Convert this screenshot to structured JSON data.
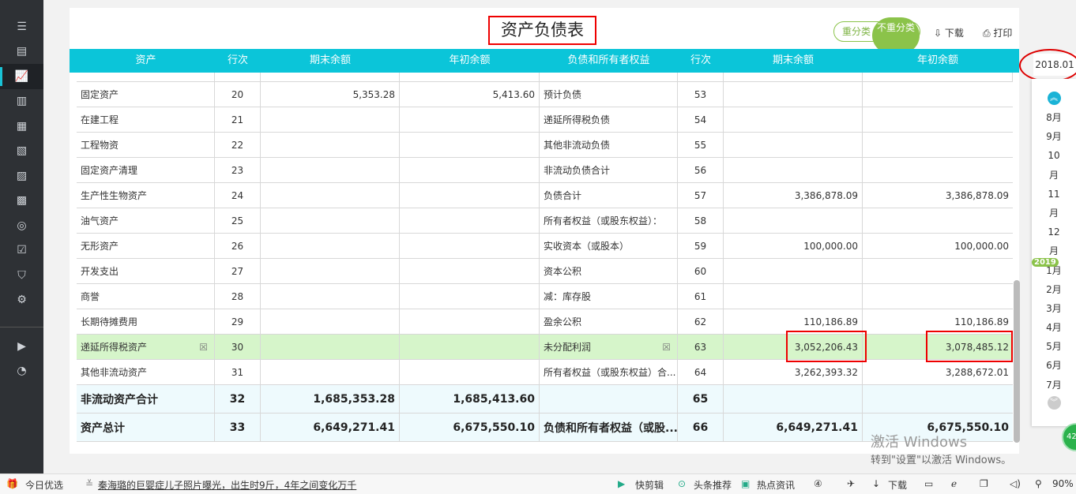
{
  "sidebar": {
    "items": [
      {
        "icon": "list-icon"
      },
      {
        "icon": "voucher-icon"
      },
      {
        "icon": "chart-icon",
        "active": true
      },
      {
        "icon": "building-icon"
      },
      {
        "icon": "calendar-icon"
      },
      {
        "icon": "ledger-icon"
      },
      {
        "icon": "store-icon"
      },
      {
        "icon": "report-icon"
      },
      {
        "icon": "coins-icon"
      },
      {
        "icon": "checklist-icon"
      },
      {
        "icon": "shield-icon"
      },
      {
        "icon": "gear-icon"
      }
    ],
    "bottom_items": [
      {
        "icon": "video-icon"
      },
      {
        "icon": "speed-icon"
      }
    ]
  },
  "header": {
    "title": "资产负债表",
    "toggle_off": "重分类",
    "toggle_on": "不重分类",
    "download": "下载",
    "print": "打印"
  },
  "table": {
    "columns": [
      "资产",
      "行次",
      "期末余额",
      "年初余额",
      "负债和所有者权益",
      "行次",
      "期末余额",
      "年初余额"
    ],
    "rows": [
      [
        "固定资产",
        "20",
        "5,353.28",
        "5,413.60",
        "预计负债",
        "53",
        "",
        ""
      ],
      [
        "在建工程",
        "21",
        "",
        "",
        "递延所得税负债",
        "54",
        "",
        ""
      ],
      [
        "工程物资",
        "22",
        "",
        "",
        "其他非流动负债",
        "55",
        "",
        ""
      ],
      [
        "固定资产清理",
        "23",
        "",
        "",
        "非流动负债合计",
        "56",
        "",
        ""
      ],
      [
        "生产性生物资产",
        "24",
        "",
        "",
        "负债合计",
        "57",
        "3,386,878.09",
        "3,386,878.09"
      ],
      [
        "油气资产",
        "25",
        "",
        "",
        "所有者权益（或股东权益）：",
        "58",
        "",
        ""
      ],
      [
        "无形资产",
        "26",
        "",
        "",
        "实收资本（或股本）",
        "59",
        "100,000.00",
        "100,000.00"
      ],
      [
        "开发支出",
        "27",
        "",
        "",
        "资本公积",
        "60",
        "",
        ""
      ],
      [
        "商誉",
        "28",
        "",
        "",
        "减：库存股",
        "61",
        "",
        ""
      ],
      [
        "长期待摊费用",
        "29",
        "",
        "",
        "盈余公积",
        "62",
        "110,186.89",
        "110,186.89"
      ],
      [
        "递延所得税资产",
        "30",
        "",
        "",
        "未分配利润",
        "63",
        "3,052,206.43",
        "3,078,485.12"
      ],
      [
        "其他非流动资产",
        "31",
        "",
        "",
        "所有者权益（或股东权益）合...",
        "64",
        "3,262,393.32",
        "3,288,672.01"
      ],
      [
        "非流动资产合计",
        "32",
        "1,685,353.28",
        "1,685,413.60",
        "",
        "65",
        "",
        ""
      ],
      [
        "资产总计",
        "33",
        "6,649,271.41",
        "6,675,550.10",
        "负债和所有者权益（或股...",
        "66",
        "6,649,271.41",
        "6,675,550.10"
      ]
    ]
  },
  "period": {
    "selected": "2018.01",
    "year_badge": "2019",
    "months": [
      "8月",
      "9月",
      "10",
      "月",
      "11",
      "月",
      "12",
      "月",
      "1月",
      "2月",
      "3月",
      "4月",
      "5月",
      "6月",
      "7月"
    ]
  },
  "watermark": {
    "line1": "激活 Windows",
    "line2": "转到\"设置\"以激活 Windows。"
  },
  "notification_badge": "42",
  "statusbar": {
    "daily": "今日优选",
    "news": "秦海璐的巨婴症儿子照片曝光，出生时9斤，4年之间变化万千",
    "items": [
      "快剪辑",
      "头条推荐",
      "热点资讯"
    ],
    "download": "下载",
    "zoom": "90%"
  },
  "colors": {
    "header": "#0bc5d9",
    "highlight_row": "#d6f5ca",
    "accent_green": "#8bc34a",
    "annotation_red": "#e00000"
  }
}
